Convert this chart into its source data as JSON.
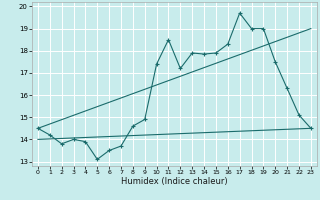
{
  "title": "",
  "xlabel": "Humidex (Indice chaleur)",
  "bg_color": "#c8ecec",
  "grid_color": "#b0d8d8",
  "line_color": "#1a6b6b",
  "xlim": [
    -0.5,
    23.5
  ],
  "ylim": [
    12.8,
    20.2
  ],
  "xticks": [
    0,
    1,
    2,
    3,
    4,
    5,
    6,
    7,
    8,
    9,
    10,
    11,
    12,
    13,
    14,
    15,
    16,
    17,
    18,
    19,
    20,
    21,
    22,
    23
  ],
  "yticks": [
    13,
    14,
    15,
    16,
    17,
    18,
    19,
    20
  ],
  "main_x": [
    0,
    1,
    2,
    3,
    4,
    5,
    6,
    7,
    8,
    9,
    10,
    11,
    12,
    13,
    14,
    15,
    16,
    17,
    18,
    19,
    20,
    21,
    22,
    23
  ],
  "main_y": [
    14.5,
    14.2,
    13.8,
    14.0,
    13.9,
    13.1,
    13.5,
    13.7,
    14.6,
    14.9,
    17.4,
    18.5,
    17.2,
    17.9,
    17.85,
    17.9,
    18.3,
    19.7,
    19.0,
    19.0,
    17.5,
    16.3,
    15.1,
    14.5
  ],
  "trend1_x": [
    0,
    23
  ],
  "trend1_y": [
    14.5,
    19.0
  ],
  "trend2_x": [
    0,
    23
  ],
  "trend2_y": [
    14.0,
    14.5
  ],
  "figsize": [
    3.2,
    2.0
  ],
  "dpi": 100
}
